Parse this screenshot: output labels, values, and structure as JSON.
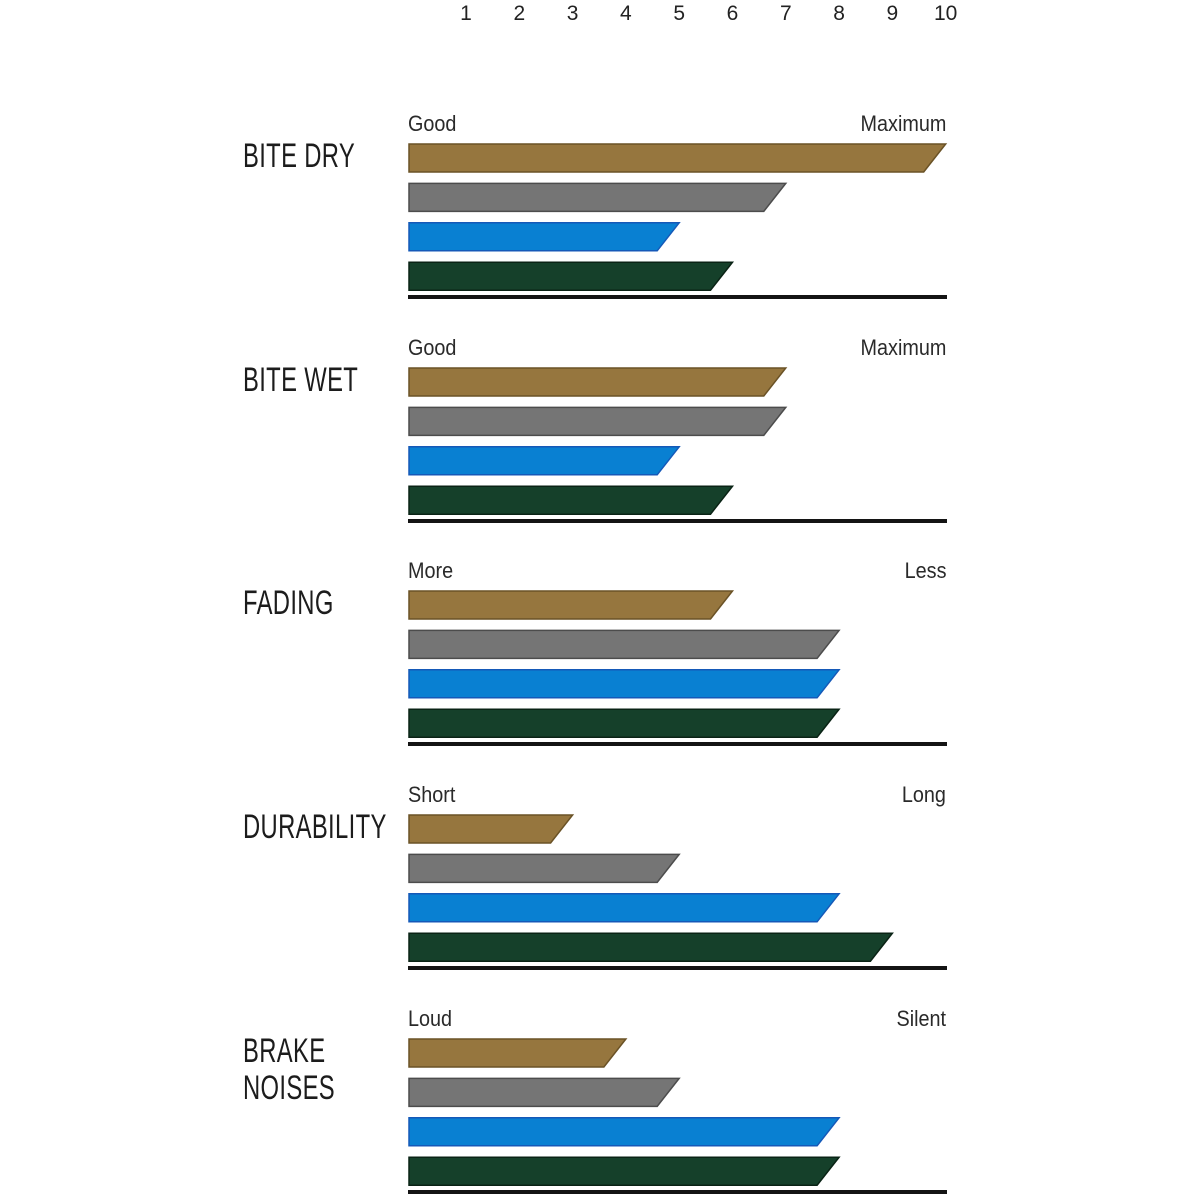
{
  "chart_data": {
    "type": "bar",
    "orientation": "horizontal",
    "title": "",
    "axis": {
      "min": 0,
      "max": 10,
      "ticks": [
        "1",
        "2",
        "3",
        "4",
        "5",
        "6",
        "7",
        "8",
        "9",
        "10"
      ],
      "position": "top",
      "grid": false
    },
    "legend": "none",
    "series": [
      {
        "name": "gold",
        "color": "#96763e",
        "edge": "#6a5226"
      },
      {
        "name": "gray",
        "color": "#757575",
        "edge": "#4c4c4c"
      },
      {
        "name": "blue",
        "color": "#0980d2",
        "edge": "#1559b8"
      },
      {
        "name": "green",
        "color": "#15402a",
        "edge": "#0a2315"
      }
    ],
    "groups": [
      {
        "label": "BITE DRY",
        "scale_left": "Good",
        "scale_right": "Maximum",
        "values": [
          10,
          7,
          5,
          6
        ]
      },
      {
        "label": "BITE WET",
        "scale_left": "Good",
        "scale_right": "Maximum",
        "values": [
          7,
          7,
          5,
          6
        ]
      },
      {
        "label": "FADING",
        "scale_left": "More",
        "scale_right": "Less",
        "values": [
          6,
          8,
          8,
          8
        ]
      },
      {
        "label": "DURABILITY",
        "scale_left": "Short",
        "scale_right": "Long",
        "values": [
          3,
          5,
          8,
          9
        ]
      },
      {
        "label": "BRAKE NOISES",
        "scale_left": "Loud",
        "scale_right": "Silent",
        "values": [
          4,
          5,
          8,
          8
        ]
      }
    ]
  },
  "colors": {
    "background": "#ffffff",
    "text": "#232323",
    "baseline": "#141414"
  }
}
